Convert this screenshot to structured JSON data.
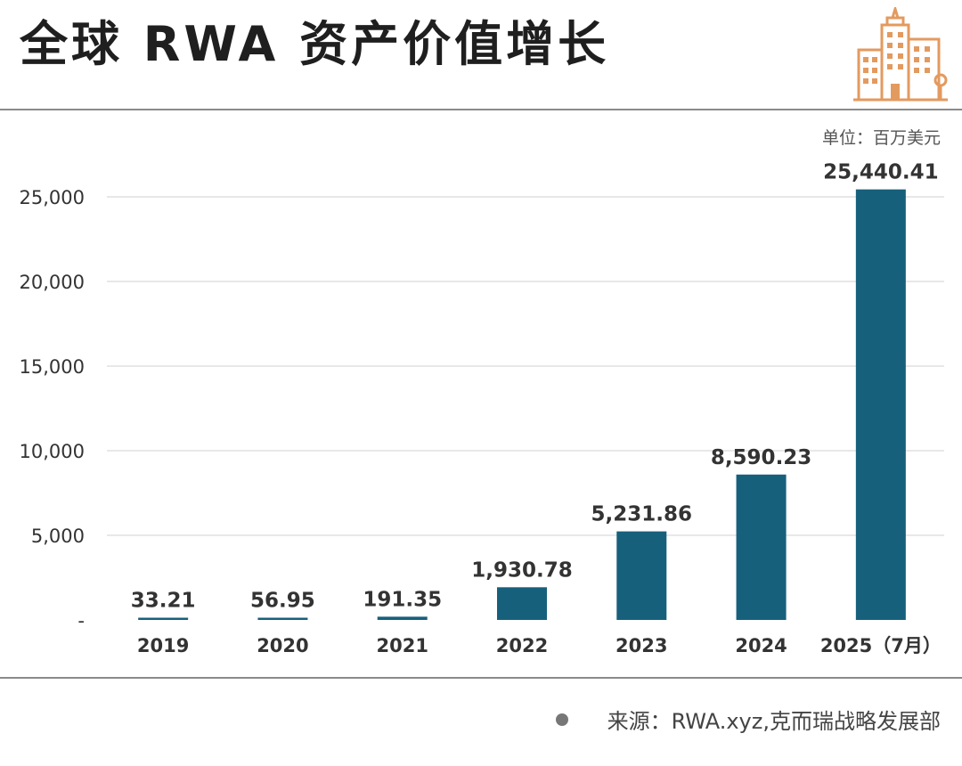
{
  "title": "全球 RWA 资产价值增长",
  "unit_label": "单位：百万美元",
  "source_label": "来源：RWA.xyz,克而瑞战略发展部",
  "colors": {
    "bar": "#17607c",
    "grid": "#d9d9d9",
    "text": "#333333"
  },
  "icons": {
    "logo": "city-buildings-icon",
    "bullet": "dot-icon"
  },
  "chart_data": {
    "type": "bar",
    "categories": [
      "2019",
      "2020",
      "2021",
      "2022",
      "2023",
      "2024",
      "2025（7月）"
    ],
    "values": [
      33.21,
      56.95,
      191.35,
      1930.78,
      5231.86,
      8590.23,
      25440.41
    ],
    "value_labels": [
      "33.21",
      "56.95",
      "191.35",
      "1,930.78",
      "5,231.86",
      "8,590.23",
      "25,440.41"
    ],
    "title": "全球 RWA 资产价值增长",
    "xlabel": "",
    "ylabel": "",
    "ylim": [
      0,
      25000
    ],
    "yticks": [
      0,
      5000,
      10000,
      15000,
      20000,
      25000
    ],
    "ytick_labels": [
      "-",
      "5,000",
      "10,000",
      "15,000",
      "20,000",
      "25,000"
    ],
    "grid": true,
    "legend": "none"
  }
}
